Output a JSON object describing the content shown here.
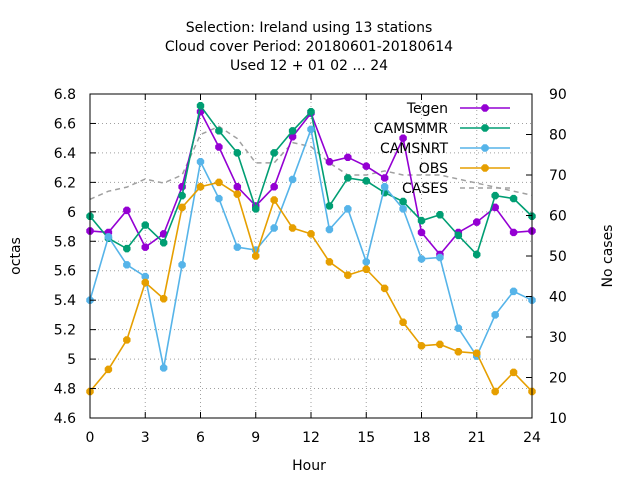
{
  "chart_data": {
    "type": "line",
    "title_lines": [
      "Selection: Ireland using    13 stations",
      "Cloud cover   Period: 20180601-20180614",
      "Used  12 + 01 02 ... 24"
    ],
    "xlabel": "Hour",
    "ylabel": "octas",
    "y2label": "No cases",
    "xlim": [
      0,
      24
    ],
    "ylim": [
      4.6,
      6.8
    ],
    "y2lim": [
      10,
      90
    ],
    "xticks": [
      "0",
      "3",
      "6",
      "9",
      "12",
      "15",
      "18",
      "21",
      "24"
    ],
    "yticks": [
      "4.6",
      "4.8",
      "5",
      "5.2",
      "5.4",
      "5.6",
      "5.8",
      "6",
      "6.2",
      "6.4",
      "6.6",
      "6.8"
    ],
    "y2ticks": [
      "10",
      "20",
      "30",
      "40",
      "50",
      "60",
      "70",
      "80",
      "90"
    ],
    "grid": true,
    "legend_position": "top-right",
    "x": [
      0,
      1,
      2,
      3,
      4,
      5,
      6,
      7,
      8,
      9,
      10,
      11,
      12,
      13,
      14,
      15,
      16,
      17,
      18,
      19,
      20,
      21,
      22,
      23,
      24
    ],
    "series": [
      {
        "name": "Tegen",
        "color": "#9400d3",
        "axis": "y1",
        "style": "line-points",
        "values": [
          5.87,
          5.86,
          6.01,
          5.76,
          5.85,
          6.17,
          6.68,
          6.44,
          6.17,
          6.04,
          6.17,
          6.51,
          6.67,
          6.34,
          6.37,
          6.31,
          6.23,
          6.5,
          5.86,
          5.71,
          5.86,
          5.93,
          6.03,
          5.86,
          5.87
        ]
      },
      {
        "name": "CAMSMMR",
        "color": "#009e73",
        "axis": "y1",
        "style": "line-points",
        "values": [
          5.97,
          5.82,
          5.75,
          5.91,
          5.79,
          6.11,
          6.72,
          6.55,
          6.4,
          6.02,
          6.4,
          6.55,
          6.68,
          6.04,
          6.23,
          6.21,
          6.13,
          6.07,
          5.94,
          5.98,
          5.84,
          5.71,
          6.11,
          6.09,
          5.97
        ]
      },
      {
        "name": "CAMSNRT",
        "color": "#56b4e9",
        "axis": "y1",
        "style": "line-points",
        "values": [
          5.4,
          5.83,
          5.64,
          5.56,
          4.94,
          5.64,
          6.34,
          6.09,
          5.76,
          5.74,
          5.89,
          6.22,
          6.56,
          5.88,
          6.02,
          5.66,
          6.17,
          6.02,
          5.68,
          5.69,
          5.21,
          5.02,
          5.3,
          5.46,
          5.4
        ]
      },
      {
        "name": "OBS",
        "color": "#e69f00",
        "axis": "y1",
        "style": "line-points",
        "values": [
          4.78,
          4.93,
          5.13,
          5.52,
          5.41,
          6.03,
          6.17,
          6.2,
          6.12,
          5.7,
          6.08,
          5.89,
          5.85,
          5.66,
          5.57,
          5.61,
          5.48,
          5.25,
          5.09,
          5.1,
          5.05,
          5.04,
          4.78,
          4.91,
          4.78
        ]
      },
      {
        "name": "CASES",
        "color": "#a0a0a0",
        "axis": "y2",
        "style": "dashed",
        "values": [
          64,
          66,
          67,
          69,
          68,
          70,
          80,
          82,
          79,
          73,
          73,
          78,
          77,
          73,
          70,
          70,
          71,
          70,
          70,
          70,
          69,
          68,
          67,
          66,
          65
        ]
      }
    ]
  }
}
